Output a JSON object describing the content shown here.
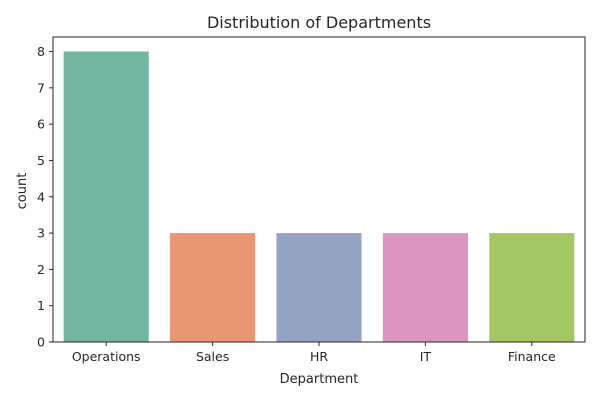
{
  "chart_data": {
    "type": "bar",
    "title": "Distribution of Departments",
    "xlabel": "Department",
    "ylabel": "count",
    "categories": [
      "Operations",
      "Sales",
      "HR",
      "IT",
      "Finance"
    ],
    "values": [
      8,
      3,
      3,
      3,
      3
    ],
    "colors": [
      "#72b6a1",
      "#e99675",
      "#95a3c3",
      "#db96c0",
      "#a2c865"
    ],
    "ylim": [
      0,
      8.4
    ],
    "yticks": [
      0,
      1,
      2,
      3,
      4,
      5,
      6,
      7,
      8
    ],
    "grid": false,
    "legend": "none"
  }
}
